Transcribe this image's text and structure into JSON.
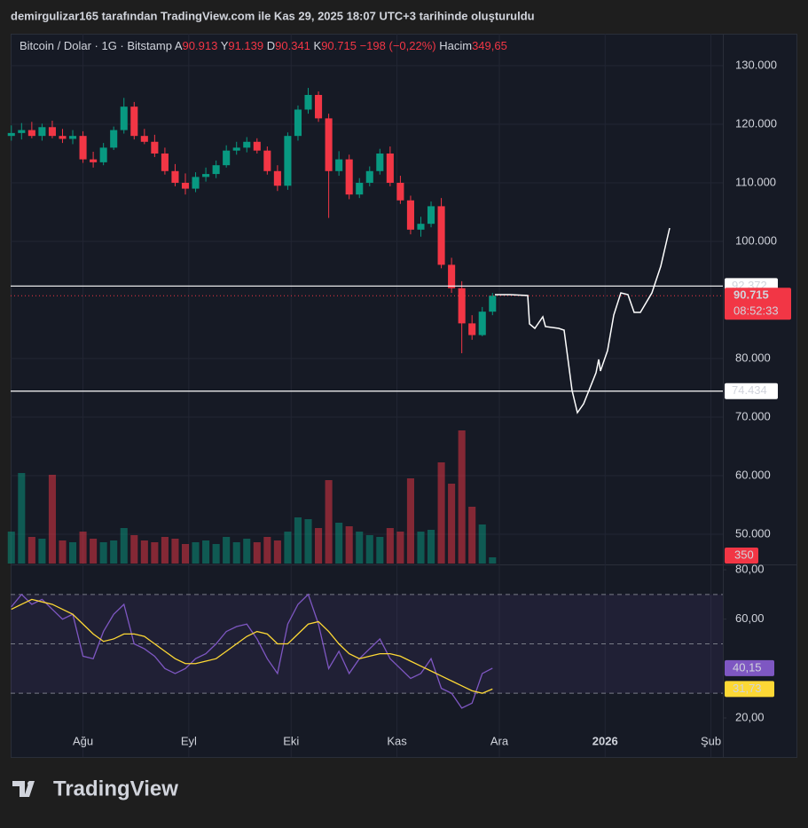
{
  "chart_data": {
    "type": "candlestick",
    "title": "demirgulizar165 tarafından TradingView.com ile Kas 29, 2025 18:07 UTC+3 tarihinde oluşturuldu",
    "symbol": "Bitcoin / Dolar · 1G · Bitstamp",
    "ohlc": [
      {
        "label": "A",
        "value": "90.913"
      },
      {
        "label": "Y",
        "value": "91.139"
      },
      {
        "label": "D",
        "value": "90.341"
      },
      {
        "label": "K",
        "value": "90.715"
      }
    ],
    "change": "−198 (−0,22%)",
    "volume_header": {
      "label": "Hacim",
      "value": "349,65"
    },
    "brand": "TradingView",
    "up_color": "#089981",
    "down_color": "#f23645",
    "x": [
      0,
      3,
      6,
      9,
      12,
      15,
      18,
      21,
      24,
      27,
      30,
      33,
      36,
      39,
      42,
      45,
      48,
      51,
      54,
      57,
      60,
      63,
      66,
      69,
      72,
      75,
      78,
      81,
      84,
      87,
      90,
      93,
      96,
      99,
      102,
      105,
      108,
      111,
      114,
      117,
      120,
      123,
      126,
      129,
      132,
      135,
      138,
      141
    ],
    "open": [
      118000,
      118500,
      119000,
      118000,
      119500,
      118000,
      117500,
      118000,
      114000,
      113500,
      116000,
      119000,
      123000,
      118000,
      117000,
      115000,
      112000,
      110000,
      109000,
      111000,
      111500,
      113000,
      115500,
      116000,
      117000,
      115500,
      112000,
      109500,
      118000,
      122500,
      125000,
      121000,
      112000,
      114000,
      108000,
      110000,
      112000,
      115000,
      110000,
      107000,
      102000,
      103000,
      106000,
      96000,
      92000,
      86000,
      84000,
      88000
    ],
    "high": [
      119800,
      120200,
      120400,
      120100,
      120600,
      119200,
      119000,
      118800,
      115300,
      116800,
      119600,
      124500,
      123800,
      119200,
      118200,
      116000,
      113200,
      111600,
      111800,
      112600,
      113800,
      116400,
      117000,
      117800,
      117600,
      116200,
      113000,
      118600,
      123200,
      126200,
      125600,
      121800,
      115400,
      114800,
      110800,
      112800,
      115800,
      116200,
      111200,
      107800,
      104200,
      106800,
      107400,
      97200,
      93200,
      87400,
      88800,
      91200
    ],
    "low": [
      117200,
      117400,
      117600,
      117200,
      117600,
      116800,
      116600,
      113400,
      112600,
      113000,
      115600,
      118400,
      117400,
      116600,
      114400,
      111400,
      109400,
      108000,
      108400,
      110200,
      110800,
      112600,
      114800,
      115200,
      115000,
      111400,
      108600,
      108800,
      117200,
      121800,
      120400,
      104000,
      111200,
      107200,
      107400,
      109400,
      111400,
      109400,
      106400,
      101200,
      100800,
      102400,
      95400,
      91200,
      80900,
      83200,
      83800,
      87400
    ],
    "close": [
      118500,
      119000,
      118000,
      119500,
      118000,
      117500,
      118000,
      114000,
      113500,
      116000,
      119000,
      123000,
      118000,
      117000,
      115000,
      112000,
      110000,
      109000,
      111000,
      111500,
      113000,
      115500,
      116000,
      117000,
      115500,
      112000,
      109500,
      118000,
      122500,
      125000,
      121000,
      112000,
      114000,
      108000,
      110000,
      112000,
      115000,
      110000,
      107000,
      102000,
      103000,
      106000,
      96000,
      92000,
      86000,
      84000,
      88000,
      90715
    ],
    "xlim": [
      -0.2,
      208.5
    ],
    "xticks": [
      {
        "value": 21,
        "label": "Ağu"
      },
      {
        "value": 52,
        "label": "Eyl"
      },
      {
        "value": 82,
        "label": "Eki"
      },
      {
        "value": 113,
        "label": "Kas"
      },
      {
        "value": 143,
        "label": "Ara"
      },
      {
        "value": 174,
        "label": "2026"
      },
      {
        "value": 205,
        "label": "Şub"
      }
    ],
    "ylim": [
      45000,
      135450
    ],
    "yticks": [
      {
        "value": 130000,
        "label": "130.000"
      },
      {
        "value": 120000,
        "label": "120.000"
      },
      {
        "value": 110000,
        "label": "110.000"
      },
      {
        "value": 100000,
        "label": "100.000"
      },
      {
        "value": 80000,
        "label": "80.000"
      },
      {
        "value": 70000,
        "label": "70.000"
      },
      {
        "value": 60000,
        "label": "60.000"
      },
      {
        "value": 50000,
        "label": "50.000"
      }
    ],
    "hlines": [
      {
        "value": 92372,
        "label": "92.372"
      },
      {
        "value": 74434,
        "label": "74.434"
      }
    ],
    "last_price": {
      "value": 90715,
      "label": "90.715",
      "countdown": "08:52:33"
    },
    "volume": {
      "values": [
        1800,
        5100,
        1500,
        1400,
        5000,
        1300,
        1200,
        1800,
        1400,
        1200,
        1300,
        2000,
        1600,
        1300,
        1200,
        1500,
        1400,
        1100,
        1200,
        1300,
        1100,
        1500,
        1200,
        1400,
        1200,
        1500,
        1300,
        1800,
        2600,
        2500,
        2000,
        4700,
        2300,
        2100,
        1800,
        1600,
        1500,
        2000,
        1800,
        4800,
        1800,
        1900,
        5700,
        4500,
        7500,
        3200,
        2200,
        349.65
      ],
      "ylim": [
        0,
        29850
      ],
      "last_label": "350"
    },
    "rsi": {
      "color": "#7e57c2",
      "ma_color": "#fdd835",
      "values": [
        65,
        70,
        66,
        68,
        64,
        60,
        62,
        45,
        44,
        55,
        62,
        66,
        50,
        48,
        45,
        40,
        38,
        40,
        44,
        46,
        50,
        55,
        57,
        58,
        52,
        44,
        38,
        58,
        66,
        70,
        58,
        40,
        47,
        38,
        44,
        48,
        52,
        44,
        40,
        36,
        38,
        44,
        32,
        30,
        24,
        26,
        38,
        40.15
      ],
      "ma": [
        64,
        66,
        68,
        67,
        66,
        64,
        62,
        58,
        54,
        51,
        52,
        54,
        54,
        53,
        50,
        47,
        44,
        42,
        42,
        43,
        44,
        47,
        50,
        53,
        55,
        54,
        50,
        50,
        54,
        58,
        59,
        55,
        50,
        46,
        44,
        45,
        46,
        46,
        45,
        43,
        41,
        39,
        37,
        35,
        33,
        31,
        30,
        31.73
      ],
      "ylim": [
        4.19,
        81.8
      ],
      "yticks": [
        {
          "value": 80,
          "label": "80,00"
        },
        {
          "value": 60,
          "label": "60,00"
        },
        {
          "value": 20,
          "label": "20,00"
        }
      ],
      "levels": [
        70,
        50,
        30
      ],
      "last_label": "40,15",
      "ma_last_label": "31,73"
    }
  }
}
